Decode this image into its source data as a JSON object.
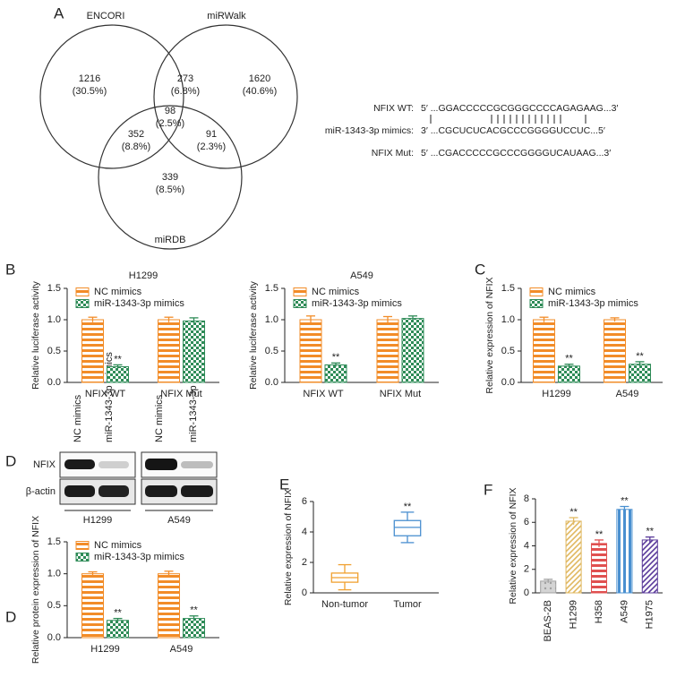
{
  "panel_labels": [
    "A",
    "B",
    "C",
    "D",
    "D",
    "E",
    "F"
  ],
  "venn": {
    "sets": [
      "ENCORI",
      "miRWalk",
      "miRDB"
    ],
    "regions": [
      {
        "count": 1216,
        "percent": "(30.5%)"
      },
      {
        "count": 273,
        "percent": "(6.8%)"
      },
      {
        "count": 1620,
        "percent": "(40.6%)"
      },
      {
        "count": 98,
        "percent": "(2.5%)"
      },
      {
        "count": 352,
        "percent": "(8.8%)"
      },
      {
        "count": 91,
        "percent": "(2.3%)"
      },
      {
        "count": 339,
        "percent": "(8.5%)"
      }
    ]
  },
  "alignment": [
    {
      "label": "NFIX WT:",
      "sequence": "5′ ...GGACCCCCGCGGGCCCCAGAGAAG...3′"
    },
    {
      "label": "miR-1343-3p mimics:",
      "sequence": "3′ ...CGCUCUCACGCCCGGGGUCCUC...5′"
    },
    {
      "label": "NFIX Mut:",
      "sequence": "5′ ...CGACCCCCGCCCGGGGUCAUAAG...3′"
    }
  ],
  "blot": {
    "lanes": [
      "NC mimics",
      "miR-1343-3p mimics",
      "NC mimics",
      "miR-1343-3p mimics"
    ],
    "rows": [
      "NFIX",
      "β-actin"
    ],
    "groups": [
      "H1299",
      "A549"
    ]
  },
  "chart_data": [
    {
      "type": "bar",
      "title": "H1299",
      "y_label": "Relative luciferase activity",
      "categories": [
        "NFIX WT",
        "NFIX Mut"
      ],
      "series": [
        {
          "name": "NC mimics",
          "color": "#f28c28",
          "pattern": "horizontal",
          "values": [
            1.0,
            1.0
          ],
          "errors": [
            0.04,
            0.04
          ],
          "significance": [
            null,
            null
          ]
        },
        {
          "name": "miR-1343-3p mimics",
          "color": "#2e8b57",
          "pattern": "checker",
          "values": [
            0.25,
            0.98
          ],
          "errors": [
            0.03,
            0.05
          ],
          "significance": [
            "**",
            null
          ]
        }
      ],
      "ylim": [
        0,
        1.5
      ],
      "yticks": [
        {
          "value": 0,
          "label": "0.0"
        },
        0.5,
        {
          "value": 1,
          "label": "1.0"
        },
        1.5
      ],
      "grid": false
    },
    {
      "type": "bar",
      "title": "A549",
      "y_label": "Relative luciferase activity",
      "categories": [
        "NFIX WT",
        "NFIX Mut"
      ],
      "series": [
        {
          "name": "NC mimics",
          "color": "#f28c28",
          "pattern": "horizontal",
          "values": [
            1.0,
            1.0
          ],
          "errors": [
            0.06,
            0.05
          ],
          "significance": [
            null,
            null
          ]
        },
        {
          "name": "miR-1343-3p mimics",
          "color": "#2e8b57",
          "pattern": "checker",
          "values": [
            0.28,
            1.02
          ],
          "errors": [
            0.03,
            0.04
          ],
          "significance": [
            "**",
            null
          ]
        }
      ],
      "ylim": [
        0,
        1.5
      ],
      "yticks": [
        {
          "value": 0,
          "label": "0.0"
        },
        0.5,
        {
          "value": 1,
          "label": "1.0"
        },
        1.5
      ],
      "grid": false
    },
    {
      "type": "bar",
      "y_label": "Relative expression of NFIX",
      "categories": [
        "H1299",
        "A549"
      ],
      "series": [
        {
          "name": "NC mimics",
          "color": "#f28c28",
          "pattern": "horizontal",
          "values": [
            1.0,
            1.0
          ],
          "errors": [
            0.04,
            0.03
          ],
          "significance": [
            null,
            null
          ]
        },
        {
          "name": "miR-1343-3p mimics",
          "color": "#2e8b57",
          "pattern": "checker",
          "values": [
            0.26,
            0.29
          ],
          "errors": [
            0.03,
            0.04
          ],
          "significance": [
            "**",
            "**"
          ]
        }
      ],
      "ylim": [
        0,
        1.5
      ],
      "yticks": [
        {
          "value": 0,
          "label": "0.0"
        },
        0.5,
        {
          "value": 1,
          "label": "1.0"
        },
        1.5
      ],
      "grid": false
    },
    {
      "type": "bar",
      "y_label": "Relative protein expression of NFIX",
      "categories": [
        "H1299",
        "A549"
      ],
      "series": [
        {
          "name": "NC mimics",
          "color": "#f28c28",
          "pattern": "horizontal",
          "values": [
            1.0,
            1.0
          ],
          "errors": [
            0.03,
            0.04
          ],
          "significance": [
            null,
            null
          ]
        },
        {
          "name": "miR-1343-3p mimics",
          "color": "#2e8b57",
          "pattern": "checker",
          "values": [
            0.27,
            0.3
          ],
          "errors": [
            0.03,
            0.04
          ],
          "significance": [
            "**",
            "**"
          ]
        }
      ],
      "ylim": [
        0,
        1.5
      ],
      "yticks": [
        {
          "value": 0,
          "label": "0.0"
        },
        0.5,
        {
          "value": 1,
          "label": "1.0"
        },
        1.5
      ],
      "grid": false
    },
    {
      "type": "box",
      "y_label": "Relative expression of NFIX",
      "categories": [
        "Non-tumor",
        "Tumor"
      ],
      "colors": [
        "#f0a030",
        "#4a8fd0"
      ],
      "boxes": [
        {
          "min": 0.2,
          "q1": 0.7,
          "median": 1.0,
          "q3": 1.3,
          "max": 1.85
        },
        {
          "min": 3.3,
          "q1": 3.75,
          "median": 4.3,
          "q3": 4.75,
          "max": 5.3
        }
      ],
      "significance": [
        null,
        "**"
      ],
      "ylim": [
        0,
        6
      ],
      "yticks": [
        0,
        2,
        4,
        6
      ],
      "grid": false
    },
    {
      "type": "bar",
      "y_label": "Relative expression of NFIX",
      "categories": [
        "BEAS-2B",
        "H1299",
        "H358",
        "A549",
        "H1975"
      ],
      "values": [
        1.0,
        6.1,
        4.2,
        7.1,
        4.5
      ],
      "errors": [
        0.15,
        0.3,
        0.3,
        0.25,
        0.25
      ],
      "significance": [
        null,
        "**",
        "**",
        "**",
        "**"
      ],
      "colors": [
        "#a0a0a0",
        "#e0b860",
        "#e05050",
        "#4a90d0",
        "#5a3a9a"
      ],
      "patterns": [
        "dots",
        "diagonal",
        "horizontal",
        "vertical",
        "diagonal"
      ],
      "rotate_labels": true,
      "ylim": [
        0,
        8
      ],
      "yticks": [
        0,
        2,
        4,
        6,
        8
      ],
      "grid": false
    }
  ]
}
